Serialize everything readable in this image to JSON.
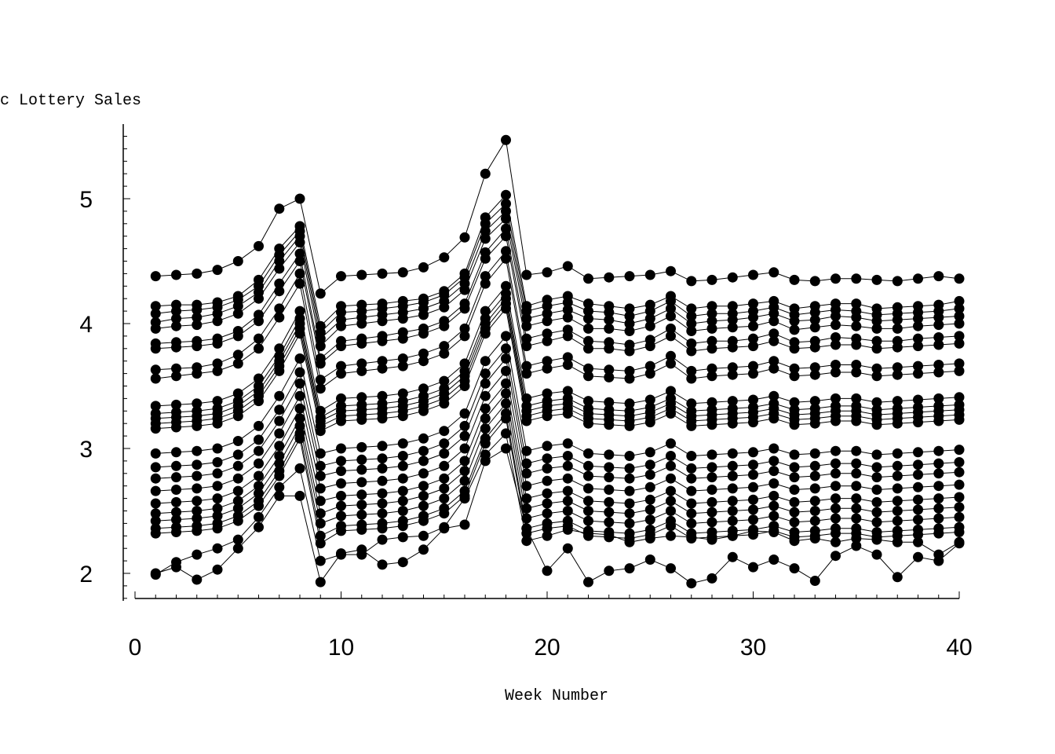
{
  "chart_data": {
    "type": "line",
    "title": "",
    "ylabel": "c Lottery Sales",
    "xlabel": "Week Number",
    "xlim": [
      0,
      40
    ],
    "ylim": [
      1.8,
      5.6
    ],
    "xticks": [
      0,
      10,
      20,
      30,
      40
    ],
    "xtick_labels": [
      "0",
      "10",
      "20",
      "30",
      "40"
    ],
    "yticks": [
      2,
      3,
      4,
      5
    ],
    "ytick_labels": [
      "2",
      "3",
      "4",
      "5"
    ],
    "x_minor_step": 1,
    "y_minor_step": 0.1,
    "grid": false,
    "legend": "none",
    "marker": "filled-circle",
    "color": "#000000",
    "x": [
      1,
      2,
      3,
      4,
      5,
      6,
      7,
      8,
      9,
      10,
      11,
      12,
      13,
      14,
      15,
      16,
      17,
      18,
      19,
      20,
      21,
      22,
      23,
      24,
      25,
      26,
      27,
      28,
      29,
      30,
      31,
      32,
      33,
      34,
      35,
      36,
      37,
      38,
      39,
      40
    ],
    "series": [
      {
        "values": [
          4.38,
          4.39,
          4.4,
          4.43,
          4.5,
          4.62,
          4.92,
          5.0,
          4.24,
          4.38,
          4.39,
          4.4,
          4.41,
          4.45,
          4.53,
          4.69,
          5.2,
          5.47,
          4.39,
          4.41,
          4.46,
          4.36,
          4.37,
          4.38,
          4.39,
          4.42,
          4.34,
          4.35,
          4.37,
          4.39,
          4.41,
          4.35,
          4.34,
          4.36,
          4.36,
          4.35,
          4.34,
          4.36,
          4.38,
          4.36
        ]
      },
      {
        "values": [
          4.14,
          4.15,
          4.15,
          4.17,
          4.22,
          4.35,
          4.6,
          4.78,
          3.98,
          4.14,
          4.15,
          4.16,
          4.18,
          4.2,
          4.26,
          4.4,
          4.85,
          5.03,
          4.14,
          4.19,
          4.22,
          4.16,
          4.14,
          4.12,
          4.15,
          4.22,
          4.12,
          4.14,
          4.14,
          4.16,
          4.18,
          4.12,
          4.14,
          4.16,
          4.16,
          4.12,
          4.13,
          4.14,
          4.15,
          4.18
        ]
      },
      {
        "values": [
          4.08,
          4.1,
          4.11,
          4.13,
          4.19,
          4.3,
          4.55,
          4.74,
          3.93,
          4.09,
          4.1,
          4.12,
          4.14,
          4.17,
          4.23,
          4.37,
          4.8,
          4.96,
          4.1,
          4.14,
          4.17,
          4.1,
          4.09,
          4.06,
          4.1,
          4.18,
          4.06,
          4.08,
          4.08,
          4.1,
          4.13,
          4.07,
          4.09,
          4.11,
          4.1,
          4.07,
          4.08,
          4.09,
          4.1,
          4.12
        ]
      },
      {
        "values": [
          4.01,
          4.04,
          4.05,
          4.08,
          4.14,
          4.25,
          4.5,
          4.7,
          3.88,
          4.03,
          4.05,
          4.07,
          4.09,
          4.12,
          4.18,
          4.32,
          4.74,
          4.9,
          4.04,
          4.08,
          4.11,
          4.04,
          4.03,
          4.0,
          4.04,
          4.12,
          4.0,
          4.02,
          4.03,
          4.05,
          4.08,
          4.02,
          4.03,
          4.06,
          4.05,
          4.02,
          4.03,
          4.04,
          4.05,
          4.06
        ]
      },
      {
        "values": [
          3.96,
          3.98,
          3.99,
          4.02,
          4.08,
          4.2,
          4.44,
          4.65,
          3.82,
          3.98,
          4.0,
          4.02,
          4.04,
          4.07,
          4.13,
          4.27,
          4.68,
          4.84,
          3.98,
          4.02,
          4.05,
          3.96,
          3.96,
          3.94,
          3.98,
          4.06,
          3.94,
          3.96,
          3.97,
          3.98,
          4.02,
          3.95,
          3.97,
          3.99,
          3.98,
          3.96,
          3.96,
          3.98,
          3.99,
          4.0
        ]
      },
      {
        "values": [
          3.84,
          3.85,
          3.86,
          3.88,
          3.94,
          4.07,
          4.32,
          4.56,
          3.72,
          3.86,
          3.88,
          3.9,
          3.93,
          3.96,
          4.02,
          4.16,
          4.57,
          4.76,
          3.88,
          3.92,
          3.95,
          3.86,
          3.85,
          3.83,
          3.87,
          3.96,
          3.84,
          3.86,
          3.86,
          3.88,
          3.92,
          3.85,
          3.86,
          3.89,
          3.88,
          3.86,
          3.86,
          3.88,
          3.89,
          3.9
        ]
      },
      {
        "values": [
          3.8,
          3.81,
          3.82,
          3.84,
          3.9,
          4.02,
          4.26,
          4.5,
          3.68,
          3.82,
          3.84,
          3.86,
          3.88,
          3.92,
          3.98,
          4.12,
          4.52,
          4.7,
          3.82,
          3.86,
          3.9,
          3.8,
          3.8,
          3.78,
          3.82,
          3.9,
          3.78,
          3.8,
          3.81,
          3.82,
          3.86,
          3.8,
          3.81,
          3.83,
          3.83,
          3.8,
          3.81,
          3.82,
          3.83,
          3.84
        ]
      },
      {
        "values": [
          3.63,
          3.64,
          3.65,
          3.68,
          3.75,
          3.88,
          4.12,
          4.4,
          3.55,
          3.66,
          3.68,
          3.7,
          3.72,
          3.76,
          3.82,
          3.96,
          4.38,
          4.58,
          3.66,
          3.7,
          3.73,
          3.64,
          3.63,
          3.62,
          3.66,
          3.74,
          3.62,
          3.64,
          3.65,
          3.66,
          3.7,
          3.64,
          3.65,
          3.67,
          3.67,
          3.64,
          3.65,
          3.66,
          3.67,
          3.68
        ]
      },
      {
        "values": [
          3.56,
          3.58,
          3.6,
          3.62,
          3.68,
          3.8,
          4.05,
          4.32,
          3.48,
          3.6,
          3.62,
          3.64,
          3.66,
          3.7,
          3.76,
          3.9,
          4.32,
          4.52,
          3.6,
          3.64,
          3.67,
          3.58,
          3.57,
          3.56,
          3.6,
          3.68,
          3.56,
          3.58,
          3.59,
          3.6,
          3.64,
          3.58,
          3.59,
          3.61,
          3.61,
          3.58,
          3.59,
          3.6,
          3.61,
          3.62
        ]
      },
      {
        "values": [
          3.34,
          3.35,
          3.36,
          3.38,
          3.44,
          3.56,
          3.8,
          4.1,
          3.3,
          3.4,
          3.41,
          3.42,
          3.44,
          3.48,
          3.54,
          3.68,
          4.1,
          4.3,
          3.4,
          3.44,
          3.46,
          3.38,
          3.37,
          3.36,
          3.39,
          3.46,
          3.36,
          3.37,
          3.38,
          3.39,
          3.42,
          3.37,
          3.38,
          3.4,
          3.4,
          3.37,
          3.38,
          3.39,
          3.4,
          3.41
        ]
      },
      {
        "values": [
          3.28,
          3.29,
          3.3,
          3.32,
          3.38,
          3.5,
          3.74,
          4.04,
          3.25,
          3.34,
          3.35,
          3.36,
          3.38,
          3.42,
          3.48,
          3.62,
          4.04,
          4.24,
          3.34,
          3.38,
          3.4,
          3.32,
          3.31,
          3.3,
          3.33,
          3.4,
          3.3,
          3.31,
          3.32,
          3.33,
          3.36,
          3.31,
          3.32,
          3.34,
          3.34,
          3.31,
          3.32,
          3.33,
          3.34,
          3.35
        ]
      },
      {
        "values": [
          3.24,
          3.25,
          3.26,
          3.28,
          3.34,
          3.46,
          3.7,
          4.0,
          3.22,
          3.3,
          3.31,
          3.32,
          3.34,
          3.38,
          3.44,
          3.58,
          4.0,
          4.2,
          3.3,
          3.34,
          3.36,
          3.28,
          3.27,
          3.26,
          3.29,
          3.36,
          3.26,
          3.27,
          3.28,
          3.29,
          3.32,
          3.27,
          3.28,
          3.3,
          3.3,
          3.27,
          3.28,
          3.29,
          3.3,
          3.31
        ]
      },
      {
        "values": [
          3.2,
          3.21,
          3.22,
          3.24,
          3.3,
          3.42,
          3.66,
          3.96,
          3.18,
          3.26,
          3.27,
          3.28,
          3.3,
          3.34,
          3.4,
          3.54,
          3.96,
          4.16,
          3.26,
          3.3,
          3.32,
          3.24,
          3.23,
          3.22,
          3.25,
          3.32,
          3.22,
          3.23,
          3.24,
          3.25,
          3.28,
          3.23,
          3.24,
          3.26,
          3.26,
          3.23,
          3.24,
          3.25,
          3.26,
          3.27
        ]
      },
      {
        "values": [
          3.16,
          3.17,
          3.18,
          3.2,
          3.26,
          3.38,
          3.62,
          3.92,
          3.14,
          3.22,
          3.23,
          3.24,
          3.26,
          3.3,
          3.36,
          3.5,
          3.92,
          4.12,
          3.22,
          3.26,
          3.28,
          3.2,
          3.19,
          3.18,
          3.21,
          3.28,
          3.18,
          3.19,
          3.2,
          3.21,
          3.24,
          3.19,
          3.2,
          3.22,
          3.22,
          3.19,
          3.2,
          3.21,
          3.22,
          3.23
        ]
      },
      {
        "values": [
          2.96,
          2.97,
          2.98,
          3.0,
          3.06,
          3.18,
          3.42,
          3.72,
          2.96,
          3.0,
          3.01,
          3.02,
          3.04,
          3.08,
          3.14,
          3.28,
          3.7,
          3.9,
          2.98,
          3.02,
          3.04,
          2.96,
          2.95,
          2.94,
          2.97,
          3.04,
          2.94,
          2.95,
          2.96,
          2.97,
          3.0,
          2.95,
          2.96,
          2.98,
          2.98,
          2.95,
          2.96,
          2.97,
          2.98,
          2.99
        ]
      },
      {
        "values": [
          2.85,
          2.86,
          2.87,
          2.89,
          2.95,
          3.07,
          3.31,
          3.61,
          2.86,
          2.9,
          2.91,
          2.92,
          2.94,
          2.98,
          3.04,
          3.18,
          3.6,
          3.8,
          2.88,
          2.92,
          2.94,
          2.86,
          2.85,
          2.84,
          2.87,
          2.94,
          2.84,
          2.85,
          2.86,
          2.87,
          2.9,
          2.85,
          2.86,
          2.88,
          2.88,
          2.85,
          2.86,
          2.87,
          2.88,
          2.89
        ]
      },
      {
        "values": [
          2.76,
          2.77,
          2.78,
          2.8,
          2.86,
          2.98,
          3.22,
          3.52,
          2.78,
          2.82,
          2.83,
          2.84,
          2.86,
          2.9,
          2.96,
          3.1,
          3.52,
          3.72,
          2.8,
          2.84,
          2.86,
          2.78,
          2.77,
          2.76,
          2.79,
          2.86,
          2.76,
          2.77,
          2.78,
          2.79,
          2.82,
          2.77,
          2.78,
          2.8,
          2.8,
          2.77,
          2.78,
          2.79,
          2.8,
          2.81
        ]
      },
      {
        "values": [
          2.66,
          2.67,
          2.68,
          2.7,
          2.76,
          2.88,
          3.12,
          3.42,
          2.68,
          2.72,
          2.73,
          2.74,
          2.76,
          2.8,
          2.86,
          3.0,
          3.42,
          3.62,
          2.7,
          2.74,
          2.76,
          2.68,
          2.67,
          2.66,
          2.69,
          2.76,
          2.66,
          2.67,
          2.68,
          2.69,
          2.72,
          2.67,
          2.68,
          2.7,
          2.7,
          2.67,
          2.68,
          2.69,
          2.7,
          2.71
        ]
      },
      {
        "values": [
          2.56,
          2.57,
          2.58,
          2.6,
          2.66,
          2.78,
          3.02,
          3.32,
          2.58,
          2.62,
          2.63,
          2.64,
          2.66,
          2.7,
          2.76,
          2.9,
          3.32,
          3.52,
          2.6,
          2.64,
          2.66,
          2.58,
          2.57,
          2.56,
          2.59,
          2.66,
          2.56,
          2.57,
          2.58,
          2.59,
          2.62,
          2.57,
          2.58,
          2.6,
          2.6,
          2.57,
          2.58,
          2.59,
          2.6,
          2.61
        ]
      },
      {
        "values": [
          2.48,
          2.49,
          2.5,
          2.52,
          2.58,
          2.7,
          2.94,
          3.24,
          2.48,
          2.54,
          2.55,
          2.56,
          2.58,
          2.62,
          2.68,
          2.82,
          3.24,
          3.44,
          2.52,
          2.56,
          2.58,
          2.5,
          2.49,
          2.48,
          2.51,
          2.58,
          2.48,
          2.49,
          2.5,
          2.51,
          2.54,
          2.49,
          2.5,
          2.52,
          2.52,
          2.49,
          2.5,
          2.51,
          2.52,
          2.53
        ]
      },
      {
        "values": [
          2.42,
          2.43,
          2.44,
          2.46,
          2.52,
          2.64,
          2.88,
          3.18,
          2.4,
          2.46,
          2.47,
          2.48,
          2.5,
          2.54,
          2.6,
          2.74,
          3.16,
          3.36,
          2.44,
          2.48,
          2.5,
          2.42,
          2.41,
          2.4,
          2.43,
          2.5,
          2.4,
          2.41,
          2.42,
          2.43,
          2.46,
          2.41,
          2.42,
          2.44,
          2.44,
          2.41,
          2.42,
          2.43,
          2.44,
          2.45
        ]
      },
      {
        "values": [
          2.36,
          2.37,
          2.38,
          2.4,
          2.46,
          2.58,
          2.82,
          3.12,
          2.3,
          2.38,
          2.39,
          2.4,
          2.42,
          2.46,
          2.52,
          2.66,
          3.08,
          3.28,
          2.36,
          2.4,
          2.42,
          2.34,
          2.33,
          2.32,
          2.35,
          2.42,
          2.32,
          2.33,
          2.34,
          2.35,
          2.38,
          2.33,
          2.34,
          2.36,
          2.36,
          2.33,
          2.34,
          2.35,
          2.36,
          2.37
        ]
      },
      {
        "values": [
          2.32,
          2.33,
          2.34,
          2.36,
          2.42,
          2.54,
          2.78,
          3.08,
          2.24,
          2.34,
          2.35,
          2.36,
          2.38,
          2.42,
          2.48,
          2.62,
          3.04,
          3.24,
          2.32,
          2.36,
          2.38,
          2.3,
          2.29,
          2.28,
          2.31,
          2.38,
          2.28,
          2.29,
          2.3,
          2.31,
          2.34,
          2.29,
          2.3,
          2.32,
          2.32,
          2.29,
          2.3,
          2.31,
          2.32,
          2.33
        ]
      },
      {
        "values": [
          1.99,
          2.09,
          2.15,
          2.2,
          2.27,
          2.45,
          2.69,
          2.84,
          2.1,
          2.15,
          2.15,
          2.27,
          2.29,
          2.3,
          2.37,
          2.6,
          2.95,
          3.12,
          2.26,
          2.3,
          2.35,
          2.32,
          2.31,
          2.25,
          2.28,
          2.3,
          2.29,
          2.27,
          2.3,
          2.34,
          2.33,
          2.26,
          2.28,
          2.25,
          2.28,
          2.27,
          2.25,
          2.25,
          2.15,
          2.25
        ]
      },
      {
        "values": [
          2.0,
          2.05,
          1.95,
          2.03,
          2.2,
          2.37,
          2.62,
          2.62,
          1.93,
          2.16,
          2.19,
          2.07,
          2.09,
          2.19,
          2.36,
          2.39,
          2.9,
          3.0,
          2.36,
          2.02,
          2.2,
          1.93,
          2.02,
          2.04,
          2.11,
          2.04,
          1.92,
          1.96,
          2.13,
          2.05,
          2.11,
          2.04,
          1.94,
          2.14,
          2.22,
          2.15,
          1.97,
          2.13,
          2.1,
          2.24
        ]
      }
    ]
  }
}
